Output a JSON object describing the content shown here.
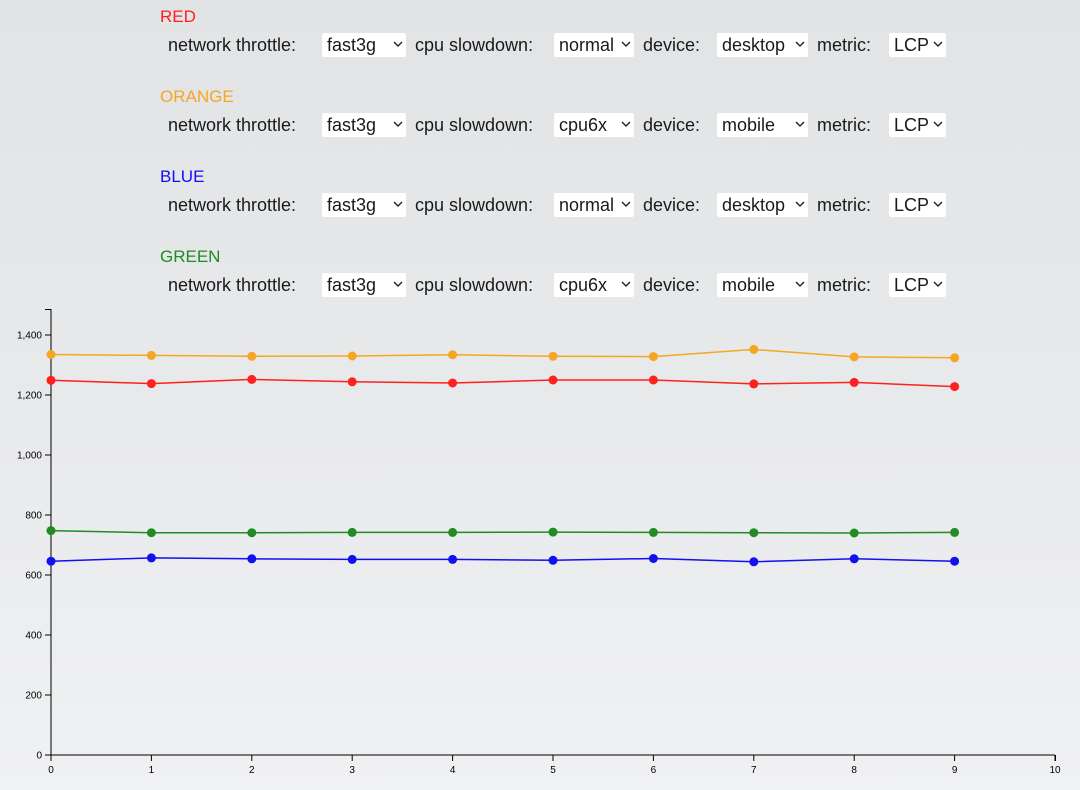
{
  "labels": {
    "network": "network throttle:",
    "cpu": "cpu slowdown:",
    "device": "device:",
    "metric": "metric:"
  },
  "groups": [
    {
      "title": "RED",
      "color": "#ff2020",
      "network": "fast3g",
      "cpu": "normal",
      "device": "desktop",
      "metric": "LCP"
    },
    {
      "title": "ORANGE",
      "color": "#f5a623",
      "network": "fast3g",
      "cpu": "cpu6x",
      "device": "mobile",
      "metric": "LCP"
    },
    {
      "title": "BLUE",
      "color": "#1010f0",
      "network": "fast3g",
      "cpu": "normal",
      "device": "desktop",
      "metric": "LCP"
    },
    {
      "title": "GREEN",
      "color": "#228b22",
      "network": "fast3g",
      "cpu": "cpu6x",
      "device": "mobile",
      "metric": "LCP"
    }
  ],
  "chart_data": {
    "type": "line",
    "x": [
      0,
      1,
      2,
      3,
      4,
      5,
      6,
      7,
      8,
      9
    ],
    "xlim": [
      0,
      10
    ],
    "ylim": [
      0,
      1400
    ],
    "xticks": [
      0,
      1,
      2,
      3,
      4,
      5,
      6,
      7,
      8,
      9,
      10
    ],
    "xtick_labels": [
      "0",
      "1",
      "2",
      "3",
      "4",
      "5",
      "6",
      "7",
      "8",
      "9",
      "10"
    ],
    "yticks": [
      0,
      200,
      400,
      600,
      800,
      1000,
      1200,
      1400
    ],
    "ytick_labels": [
      "0",
      "200",
      "400",
      "600",
      "800",
      "1,000",
      "1,200",
      "1,400"
    ],
    "grid": false,
    "series": [
      {
        "color": "#f5a623",
        "values": [
          1335,
          1332,
          1329,
          1330,
          1334,
          1329,
          1328,
          1352,
          1327,
          1324
        ]
      },
      {
        "color": "#ff2020",
        "values": [
          1249,
          1238,
          1252,
          1244,
          1240,
          1250,
          1250,
          1237,
          1242,
          1228
        ]
      },
      {
        "color": "#228b22",
        "values": [
          748,
          741,
          741,
          742,
          742,
          743,
          742,
          741,
          740,
          742
        ]
      },
      {
        "color": "#1010f0",
        "values": [
          646,
          657,
          654,
          652,
          652,
          649,
          655,
          644,
          654,
          646
        ]
      }
    ]
  }
}
